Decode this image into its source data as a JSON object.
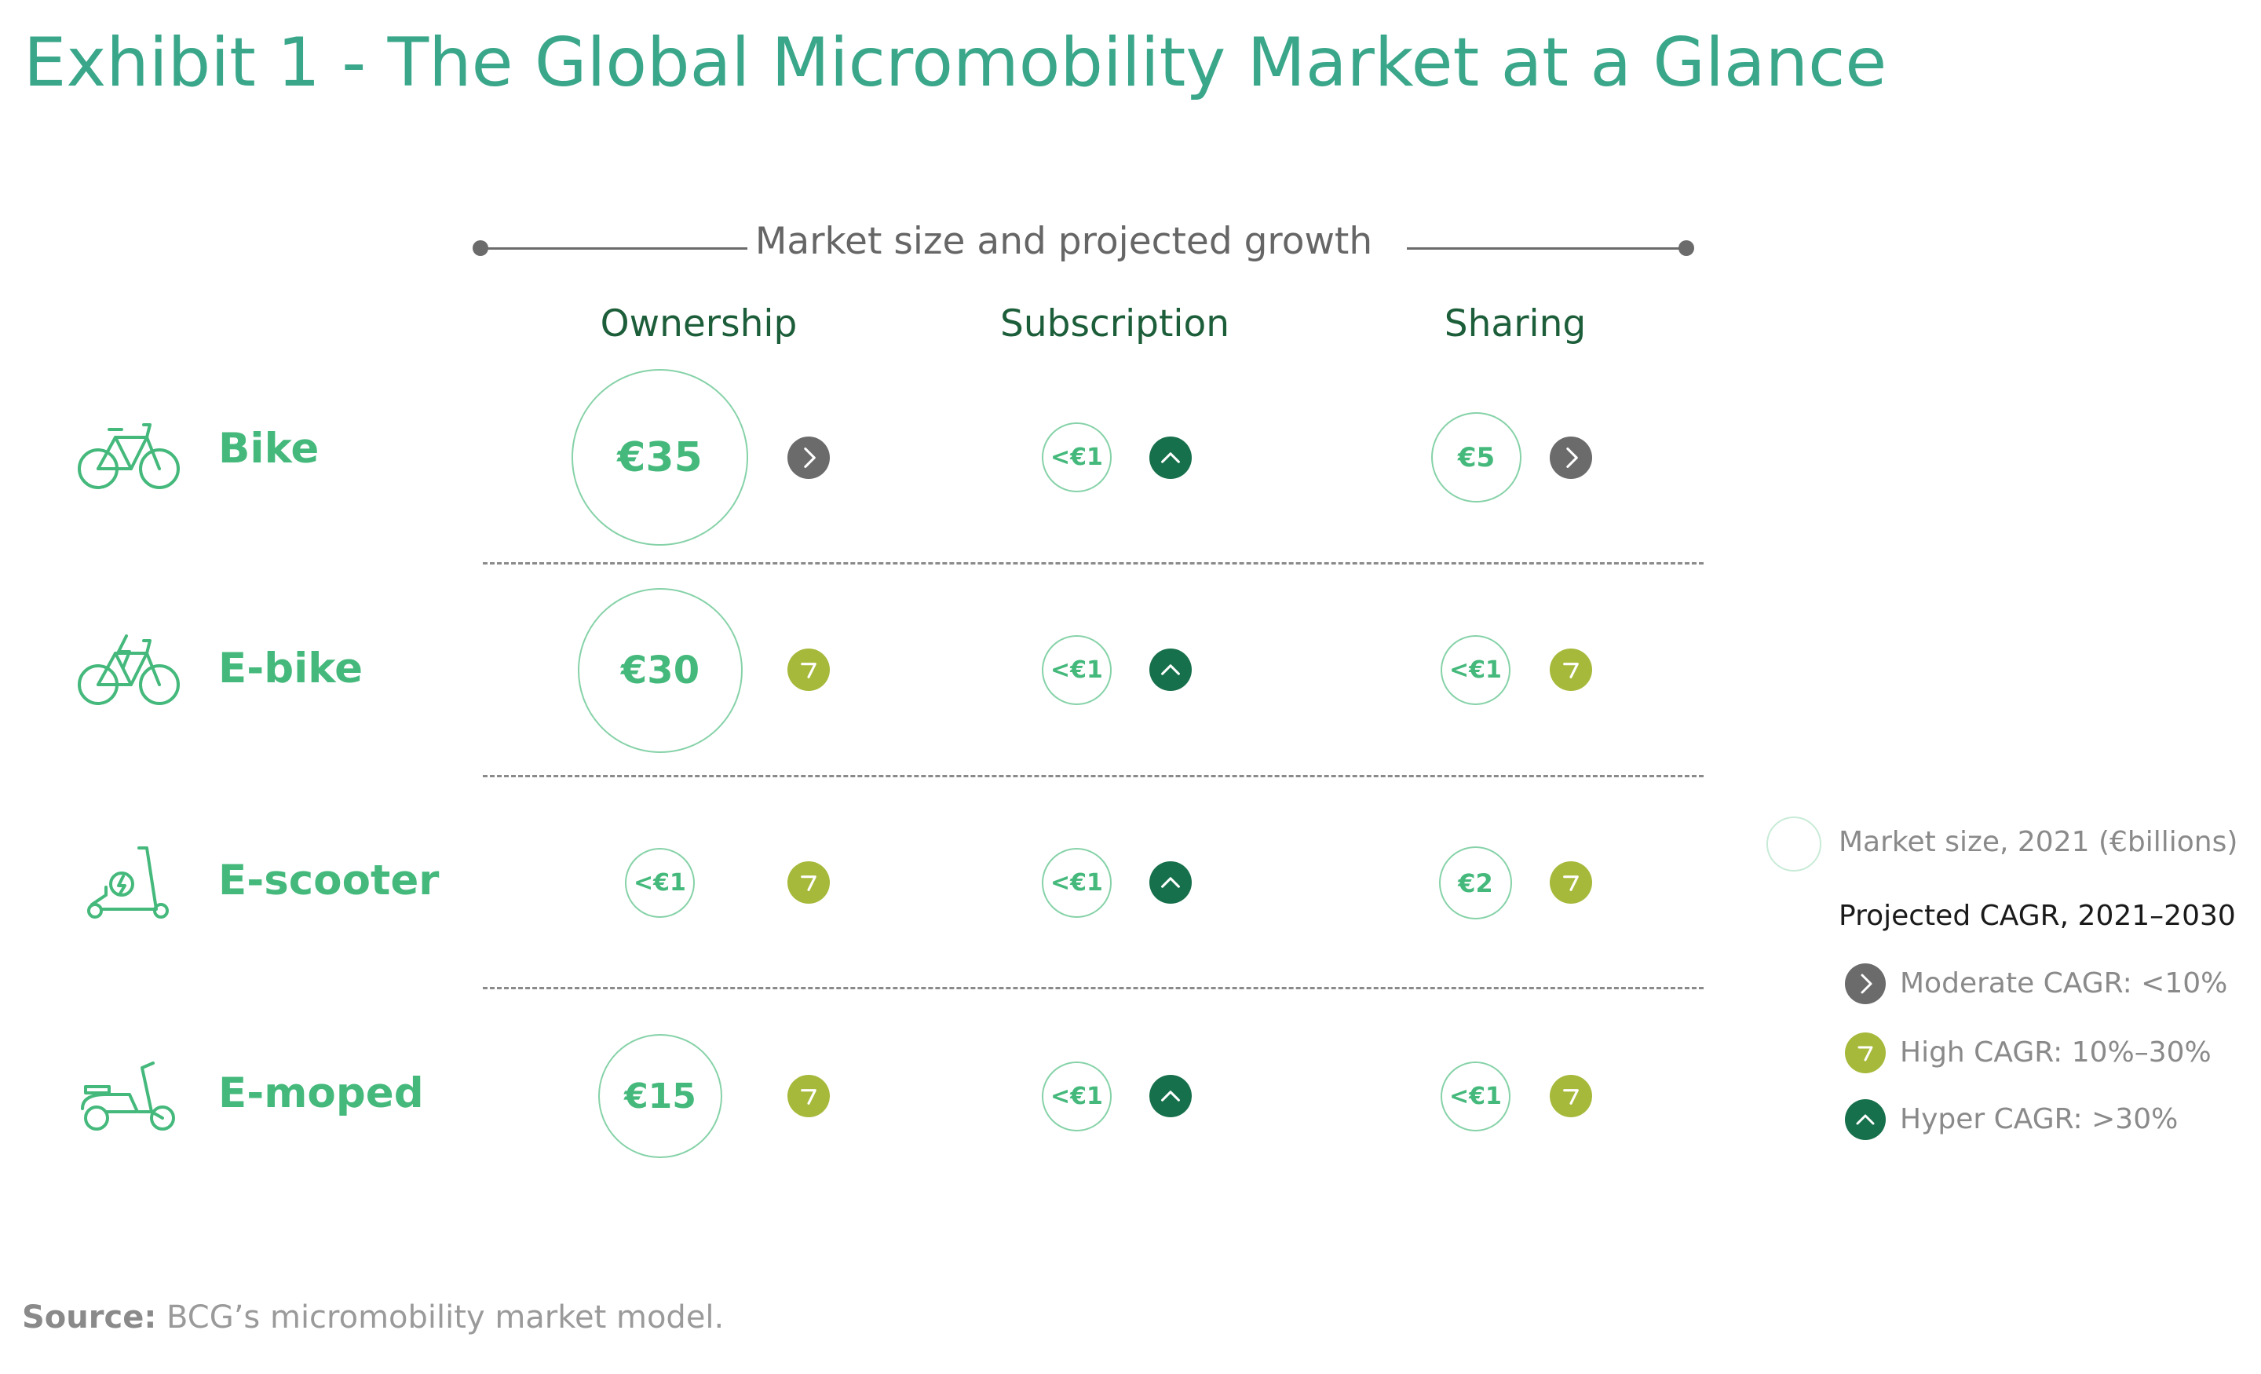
{
  "title": "Exhibit 1 - The Global Micromobility Market at a Glance",
  "header": "Market size and projected growth",
  "columns": [
    "Ownership",
    "Subscription",
    "Sharing"
  ],
  "rows": [
    {
      "label": "Bike",
      "icon": "bike-icon",
      "cells": [
        {
          "size": "€35",
          "cagr": "moderate"
        },
        {
          "size": "<€1",
          "cagr": "hyper"
        },
        {
          "size": "€5",
          "cagr": "moderate"
        }
      ]
    },
    {
      "label": "E-bike",
      "icon": "e-bike-icon",
      "cells": [
        {
          "size": "€30",
          "cagr": "high"
        },
        {
          "size": "<€1",
          "cagr": "hyper"
        },
        {
          "size": "<€1",
          "cagr": "high"
        }
      ]
    },
    {
      "label": "E-scooter",
      "icon": "e-scooter-icon",
      "cells": [
        {
          "size": "<€1",
          "cagr": "high"
        },
        {
          "size": "<€1",
          "cagr": "hyper"
        },
        {
          "size": "€2",
          "cagr": "high"
        }
      ]
    },
    {
      "label": "E-moped",
      "icon": "e-moped-icon",
      "cells": [
        {
          "size": "€15",
          "cagr": "high"
        },
        {
          "size": "<€1",
          "cagr": "hyper"
        },
        {
          "size": "<€1",
          "cagr": "high"
        }
      ]
    }
  ],
  "legend": {
    "market_size": "Market size, 2021 (€billions)",
    "cagr_title": "Projected CAGR, 2021–2030",
    "moderate": "Moderate CAGR: <10%",
    "high": "High CAGR: 10%–30%",
    "hyper": "Hyper CAGR: >30%"
  },
  "source": {
    "label": "Source:",
    "text": " BCG’s micromobility market model."
  },
  "colors": {
    "title": "#3aa78a",
    "bubble_text": "#45b97c",
    "bubble_border": "#86d2a8",
    "moderate": "#6b6b6b",
    "high": "#a7b93a",
    "hyper": "#17704c",
    "column_header": "#1d5e3a"
  }
}
